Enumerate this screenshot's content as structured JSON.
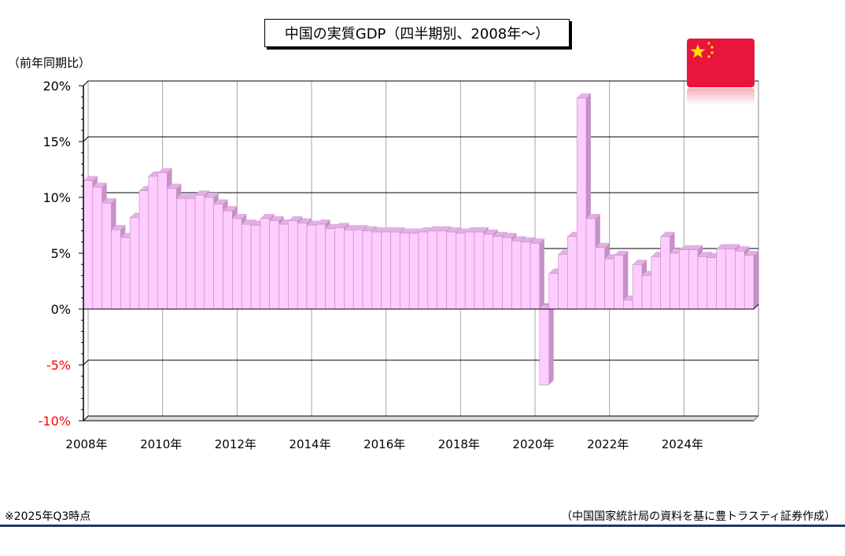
{
  "title": "中国の実質GDP（四半期別、2008年～）",
  "y_unit_label": "（前年同期比）",
  "footnote": "※2025年Q3時点",
  "source": "（中国国家統計局の資料を基に豊トラスティ証券作成）",
  "flag": {
    "icon": "china-flag-icon",
    "background": "#e8163c",
    "star_color": "#ffde00"
  },
  "colors": {
    "bar_face": "#ffccff",
    "bar_side": "#c691c6",
    "bar_top": "#e3b0e3",
    "negative_tick": "#ff0000"
  },
  "chart_data": {
    "type": "bar",
    "title": "中国の実質GDP（四半期別、2008年～）",
    "xlabel": "",
    "ylabel": "（前年同期比）",
    "ylim": [
      -10,
      20
    ],
    "y_ticks": [
      "20%",
      "15%",
      "10%",
      "5%",
      "0%",
      "-5%",
      "-10%"
    ],
    "x_ticks": [
      "2008年",
      "2010年",
      "2012年",
      "2014年",
      "2016年",
      "2018年",
      "2020年",
      "2022年",
      "2024年"
    ],
    "grid": true,
    "values": [
      11.5,
      10.9,
      9.5,
      7.1,
      6.4,
      8.2,
      10.6,
      11.9,
      12.2,
      10.8,
      9.9,
      9.9,
      10.2,
      10.0,
      9.4,
      8.8,
      8.1,
      7.6,
      7.5,
      8.1,
      7.9,
      7.6,
      7.9,
      7.7,
      7.5,
      7.6,
      7.2,
      7.3,
      7.1,
      7.1,
      7.0,
      6.9,
      6.9,
      6.9,
      6.8,
      6.8,
      6.9,
      7.0,
      7.0,
      6.9,
      6.8,
      6.9,
      6.9,
      6.7,
      6.5,
      6.4,
      6.1,
      6.0,
      5.9,
      -6.8,
      3.2,
      4.9,
      6.5,
      18.9,
      8.1,
      5.5,
      4.5,
      4.8,
      0.8,
      4.0,
      3.0,
      4.7,
      6.5,
      5.0,
      5.3,
      5.3,
      4.7,
      4.6,
      5.4,
      5.4,
      5.2,
      4.8
    ]
  }
}
